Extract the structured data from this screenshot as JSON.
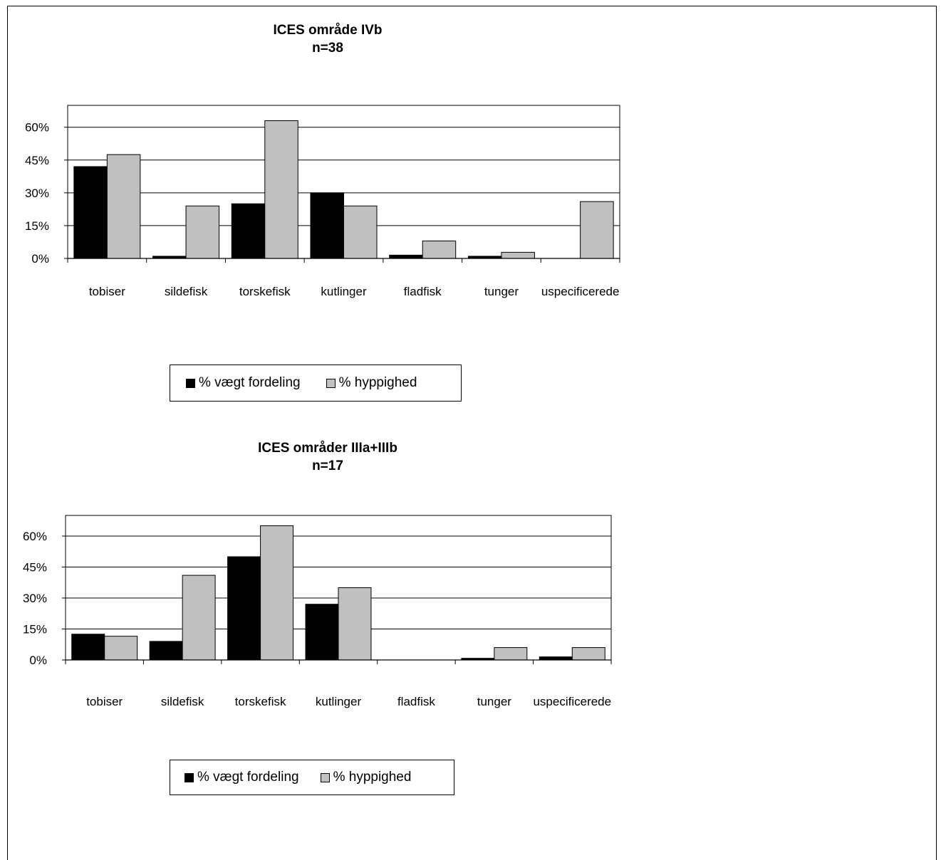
{
  "colors": {
    "weight": "#000000",
    "frequency": "#c0c0c0",
    "grid": "#000000"
  },
  "chart_data": [
    {
      "type": "bar",
      "title": "ICES område IVb",
      "subtitle": "n=38",
      "categories": [
        "tobiser",
        "sildefisk",
        "torskefisk",
        "kutlinger",
        "fladfisk",
        "tunger",
        "uspecificerede"
      ],
      "series": [
        {
          "name": "% vægt fordeling",
          "values": [
            42,
            1,
            25,
            30,
            1.5,
            1,
            0
          ]
        },
        {
          "name": "% hyppighed",
          "values": [
            47.5,
            24,
            63,
            24,
            8,
            2.8,
            26
          ]
        }
      ],
      "yticks": [
        "0%",
        "15%",
        "30%",
        "45%",
        "60%"
      ],
      "ylim": [
        0,
        70
      ],
      "grid": true,
      "legend_position": "bottom"
    },
    {
      "type": "bar",
      "title": "ICES områder  IIIa+IIIb",
      "subtitle": "n=17",
      "categories": [
        "tobiser",
        "sildefisk",
        "torskefisk",
        "kutlinger",
        "fladfisk",
        "tunger",
        "uspecificerede"
      ],
      "series": [
        {
          "name": "% vægt fordeling",
          "values": [
            12.5,
            9,
            50,
            27,
            0,
            0.8,
            1.5
          ]
        },
        {
          "name": "% hyppighed",
          "values": [
            11.5,
            41,
            65,
            35,
            0,
            6,
            6
          ]
        }
      ],
      "yticks": [
        "0%",
        "15%",
        "30%",
        "45%",
        "60%"
      ],
      "ylim": [
        0,
        70
      ],
      "grid": true,
      "legend_position": "bottom"
    }
  ]
}
